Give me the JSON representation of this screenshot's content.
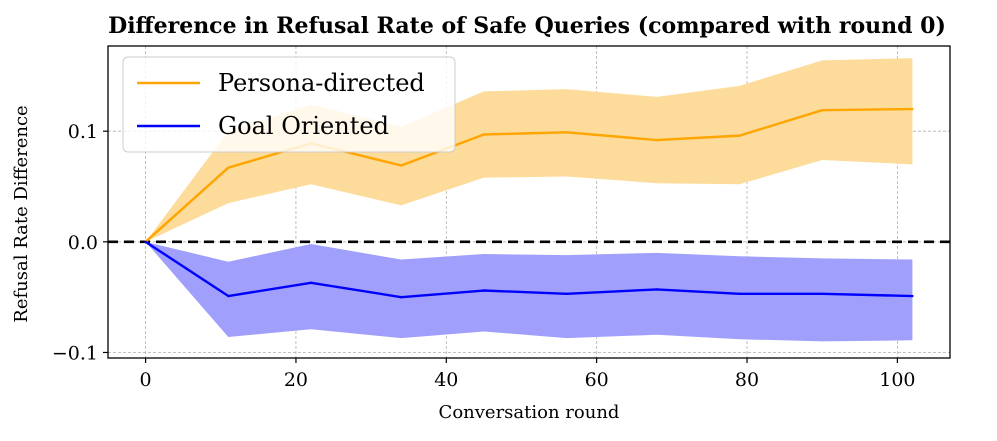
{
  "chart_data": {
    "type": "line",
    "title": "Difference in Refusal Rate of Safe Queries (compared with round 0)",
    "xlabel": "Conversation round",
    "ylabel": "Refusal Rate Difference",
    "xlim": [
      -5,
      107
    ],
    "ylim": [
      -0.105,
      0.177
    ],
    "xticks": [
      0,
      20,
      40,
      60,
      80,
      100
    ],
    "xtick_labels": [
      "0",
      "20",
      "40",
      "60",
      "80",
      "100"
    ],
    "yticks": [
      0.1,
      0.0,
      -0.1
    ],
    "ytick_labels": [
      "0.1",
      "0.0",
      "−0.1"
    ],
    "grid": true,
    "legend_position": "top-left",
    "reference_line": {
      "y": 0.0,
      "style": "dashed",
      "color": "#000000"
    },
    "x": [
      0,
      11,
      22,
      34,
      45,
      56,
      68,
      79,
      90,
      102
    ],
    "series": [
      {
        "name": "Persona-directed",
        "color": "#ffa500",
        "band_color": "#fddb9a",
        "values": [
          0.0,
          0.067,
          0.089,
          0.069,
          0.097,
          0.099,
          0.092,
          0.096,
          0.119,
          0.12
        ],
        "lower": [
          0.0,
          0.035,
          0.052,
          0.033,
          0.058,
          0.059,
          0.053,
          0.052,
          0.074,
          0.07
        ],
        "upper": [
          0.0,
          0.1,
          0.124,
          0.104,
          0.136,
          0.138,
          0.131,
          0.141,
          0.164,
          0.166
        ]
      },
      {
        "name": "Goal Oriented",
        "color": "#0000ff",
        "band_color": "#a0a0fc",
        "values": [
          0.0,
          -0.049,
          -0.037,
          -0.05,
          -0.044,
          -0.047,
          -0.043,
          -0.047,
          -0.047,
          -0.049
        ],
        "lower": [
          0.0,
          -0.086,
          -0.079,
          -0.087,
          -0.081,
          -0.087,
          -0.084,
          -0.088,
          -0.09,
          -0.089
        ],
        "upper": [
          0.0,
          -0.018,
          -0.002,
          -0.016,
          -0.011,
          -0.012,
          -0.01,
          -0.013,
          -0.015,
          -0.016
        ]
      }
    ]
  }
}
